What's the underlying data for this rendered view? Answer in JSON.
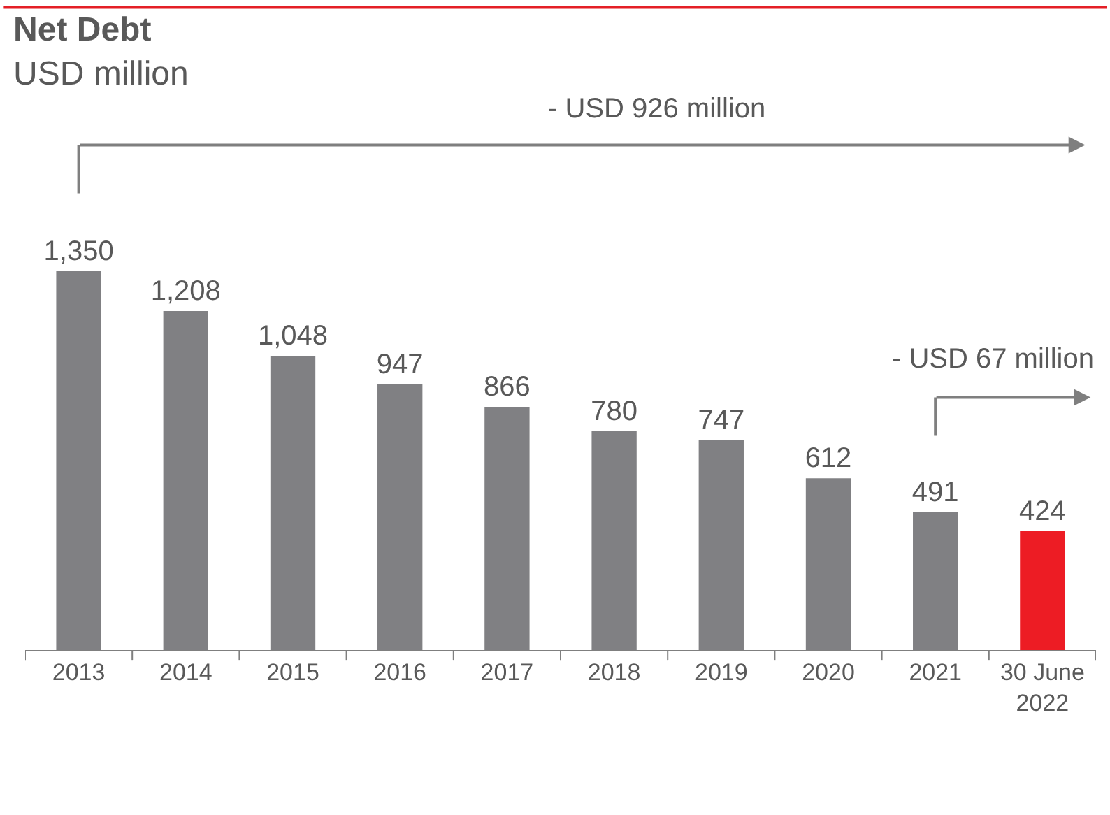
{
  "chart_data": {
    "type": "bar",
    "title": "Net Debt",
    "subtitle": "USD million",
    "categories": [
      "2013",
      "2014",
      "2015",
      "2016",
      "2017",
      "2018",
      "2019",
      "2020",
      "2021",
      "30 June\n2022"
    ],
    "values": [
      1350,
      1208,
      1048,
      947,
      866,
      780,
      747,
      612,
      491,
      424
    ],
    "colors": [
      "#808083",
      "#808083",
      "#808083",
      "#808083",
      "#808083",
      "#808083",
      "#808083",
      "#808083",
      "#808083",
      "#ed1c24"
    ],
    "value_labels": [
      "1,350",
      "1,208",
      "1,048",
      "947",
      "866",
      "780",
      "747",
      "612",
      "491",
      "424"
    ],
    "legend": false,
    "annotations": [
      "- USD 926 million",
      "- USD 67 million"
    ]
  }
}
